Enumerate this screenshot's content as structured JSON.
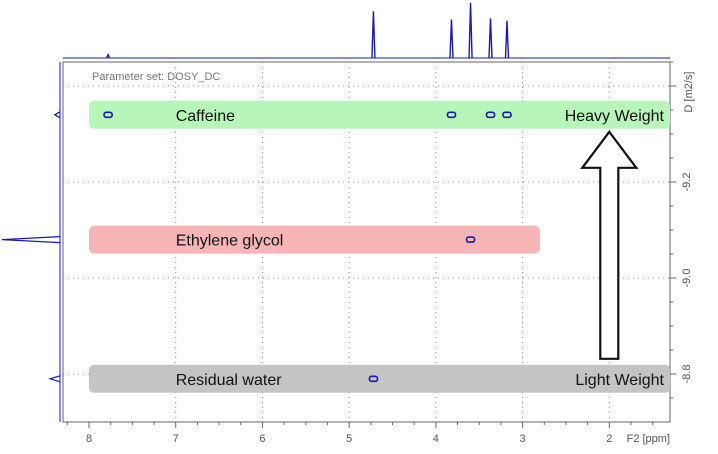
{
  "parameter_set": "Parameter set: DOSY_DC",
  "chart_data": {
    "type": "scatter",
    "subtype": "2D DOSY NMR spectrum",
    "title": "",
    "xlabel": "F2 [ppm]",
    "ylabel": "D [m2/s]",
    "xlim": [
      8.3,
      1.3
    ],
    "ylim": [
      -8.7,
      -9.45
    ],
    "x_ticks": [
      8,
      7,
      6,
      5,
      4,
      3,
      2
    ],
    "x_tick_labels": [
      "8",
      "7",
      "6",
      "5",
      "4",
      "3",
      "2"
    ],
    "y_ticks": [
      -8.8,
      -9.0,
      -9.2
    ],
    "y_tick_labels": [
      "-8.8",
      "-9.0",
      "-9.2"
    ],
    "grid": true,
    "bands": [
      {
        "label": "Caffeine",
        "y": -9.34,
        "x_from": 8.0,
        "x_to": 1.3,
        "color": "#b8f5b8",
        "side_label": "Heavy Weight"
      },
      {
        "label": "Ethylene glycol",
        "y": -9.08,
        "x_from": 8.0,
        "x_to": 2.8,
        "color": "#f7b5b5",
        "side_label": ""
      },
      {
        "label": "Residual water",
        "y": -8.79,
        "x_from": 8.0,
        "x_to": 1.3,
        "color": "#c4c4c4",
        "side_label": "Light Weight"
      }
    ],
    "points": [
      {
        "x": 7.78,
        "y": -9.34,
        "compound": "Caffeine"
      },
      {
        "x": 3.82,
        "y": -9.34,
        "compound": "Caffeine"
      },
      {
        "x": 3.37,
        "y": -9.34,
        "compound": "Caffeine"
      },
      {
        "x": 3.18,
        "y": -9.34,
        "compound": "Caffeine"
      },
      {
        "x": 3.6,
        "y": -9.08,
        "compound": "Ethylene glycol"
      },
      {
        "x": 4.72,
        "y": -8.79,
        "compound": "Residual water"
      }
    ],
    "f2_projection_peaks": [
      {
        "x": 7.78,
        "height": 0.06
      },
      {
        "x": 4.72,
        "height": 0.85
      },
      {
        "x": 3.82,
        "height": 0.7
      },
      {
        "x": 3.6,
        "height": 1.0
      },
      {
        "x": 3.37,
        "height": 0.72
      },
      {
        "x": 3.18,
        "height": 0.68
      }
    ],
    "diffusion_projection_peaks": [
      {
        "y": -9.34,
        "height": 0.09
      },
      {
        "y": -9.08,
        "height": 1.0
      },
      {
        "y": -8.79,
        "height": 0.17
      }
    ],
    "annotation_arrow": {
      "from": "Light Weight",
      "to": "Heavy Weight",
      "x": 2.0
    }
  },
  "colors": {
    "spectrum": "#1a1aa8",
    "point": "#1a1aa8",
    "grid": "#888888",
    "axis": "#666666"
  }
}
